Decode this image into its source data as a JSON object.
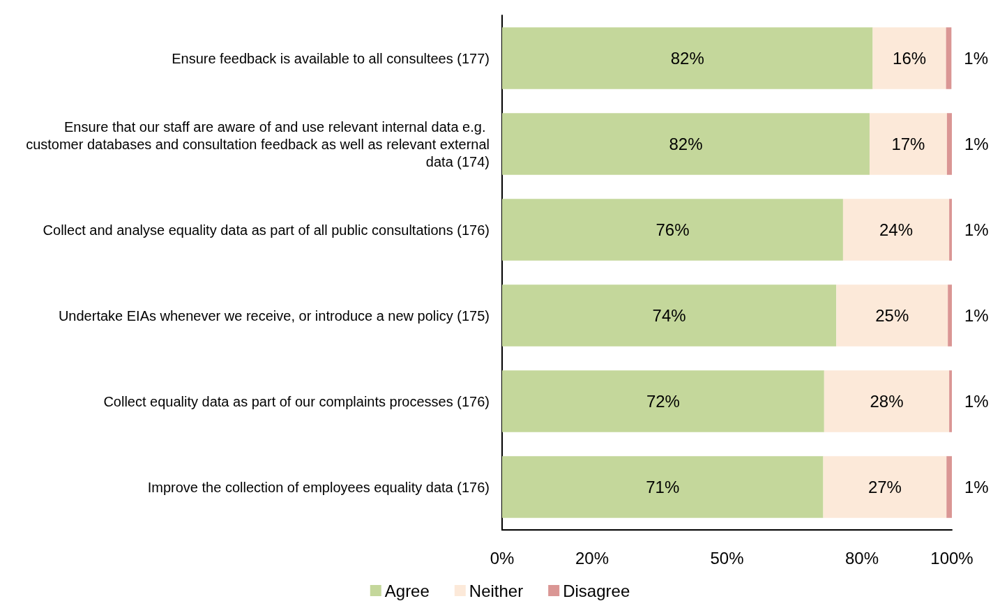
{
  "chart_data": {
    "type": "bar",
    "orientation": "horizontal",
    "stacked": true,
    "categories": [
      "Ensure feedback is available to all consultees (177)",
      "Ensure that our staff are aware of and use relevant internal data e.g. customer databases and consultation feedback as well as relevant external data (174)",
      "Collect and analyse equality data as part of all public consultations (176)",
      "Undertake EIAs whenever we receive, or introduce a new policy (175)",
      "Collect equality data as part of our complaints processes (176)",
      "Improve the collection of employees equality data (176)"
    ],
    "series": [
      {
        "name": "Agree",
        "color": "#c4d79b",
        "values": [
          82.4,
          81.7,
          75.8,
          74.3,
          71.6,
          71.4
        ],
        "value_labels": [
          "82%",
          "82%",
          "76%",
          "74%",
          "72%",
          "71%"
        ]
      },
      {
        "name": "Neither",
        "color": "#fce9d9",
        "values": [
          16.3,
          17.2,
          23.6,
          24.8,
          27.8,
          27.4
        ],
        "value_labels": [
          "16%",
          "17%",
          "24%",
          "25%",
          "28%",
          "27%"
        ]
      },
      {
        "name": "Disagree",
        "color": "#da9694",
        "values": [
          1.2,
          1.1,
          0.6,
          0.9,
          0.6,
          1.2
        ],
        "value_labels": [
          "1%",
          "1%",
          "1%",
          "1%",
          "1%",
          "1%"
        ]
      }
    ],
    "xlim": [
      0,
      100
    ],
    "xticks": [
      {
        "value": 0,
        "label": "0%"
      },
      {
        "value": 20,
        "label": "20%"
      },
      {
        "value": 50,
        "label": "50%"
      },
      {
        "value": 80,
        "label": "80%"
      },
      {
        "value": 100,
        "label": "100%"
      }
    ],
    "legend": "bottom",
    "grid": false
  }
}
